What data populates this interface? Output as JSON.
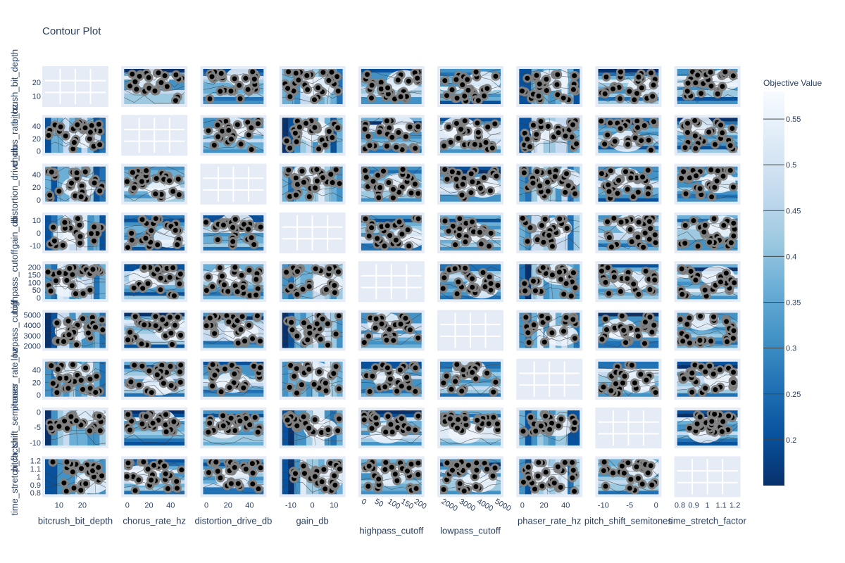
{
  "chart_data": {
    "type": "contour",
    "title": "Contour Plot",
    "colorbar": {
      "title": "Objective Value",
      "range": [
        0.15,
        0.58
      ],
      "ticks": [
        "0.2",
        "0.25",
        "0.3",
        "0.35",
        "0.4",
        "0.45",
        "0.5",
        "0.55"
      ],
      "colorscale": "Blues",
      "colors": [
        "#08306b",
        "#08519c",
        "#2171b5",
        "#4292c6",
        "#6baed6",
        "#9ecae1",
        "#c6dbef",
        "#deebf7",
        "#f7fbff"
      ]
    },
    "params": [
      {
        "name": "bitcrush_bit_depth",
        "range": [
          4,
          30
        ],
        "ticks": [
          "10",
          "20"
        ],
        "tick_values": [
          10,
          20
        ]
      },
      {
        "name": "chorus_rate_hz",
        "range": [
          -3,
          53
        ],
        "ticks": [
          "0",
          "20",
          "40"
        ],
        "tick_values": [
          0,
          20,
          40
        ]
      },
      {
        "name": "distortion_drive_db",
        "range": [
          -3,
          53
        ],
        "ticks": [
          "0",
          "20",
          "40"
        ],
        "tick_values": [
          0,
          20,
          40
        ]
      },
      {
        "name": "gain_db",
        "range": [
          -14,
          14
        ],
        "ticks": [
          "-10",
          "0",
          "10"
        ],
        "tick_values": [
          -10,
          0,
          10
        ]
      },
      {
        "name": "highpass_cutoff",
        "range": [
          -10,
          220
        ],
        "ticks": [
          "0",
          "50",
          "100",
          "150",
          "200"
        ],
        "tick_values": [
          0,
          50,
          100,
          150,
          200
        ]
      },
      {
        "name": "lowpass_cutoff",
        "range": [
          1800,
          5200
        ],
        "ticks": [
          "2000",
          "3000",
          "4000",
          "5000"
        ],
        "tick_values": [
          2000,
          3000,
          4000,
          5000
        ]
      },
      {
        "name": "phaser_rate_hz",
        "range": [
          -3,
          53
        ],
        "ticks": [
          "0",
          "20",
          "40"
        ],
        "tick_values": [
          0,
          20,
          40
        ]
      },
      {
        "name": "pitch_shift_semitones",
        "range": [
          -11,
          0.5
        ],
        "ticks": [
          "-10",
          "-5",
          "0"
        ],
        "tick_values": [
          -10,
          -5,
          0
        ]
      },
      {
        "name": "time_stretch_factor",
        "range": [
          0.78,
          1.22
        ],
        "ticks": [
          "0.8",
          "0.9",
          "1",
          "1.1",
          "1.2"
        ],
        "tick_values": [
          0.8,
          0.9,
          1,
          1.1,
          1.2
        ]
      }
    ],
    "grid": "on",
    "legend": "colorbar-right"
  }
}
